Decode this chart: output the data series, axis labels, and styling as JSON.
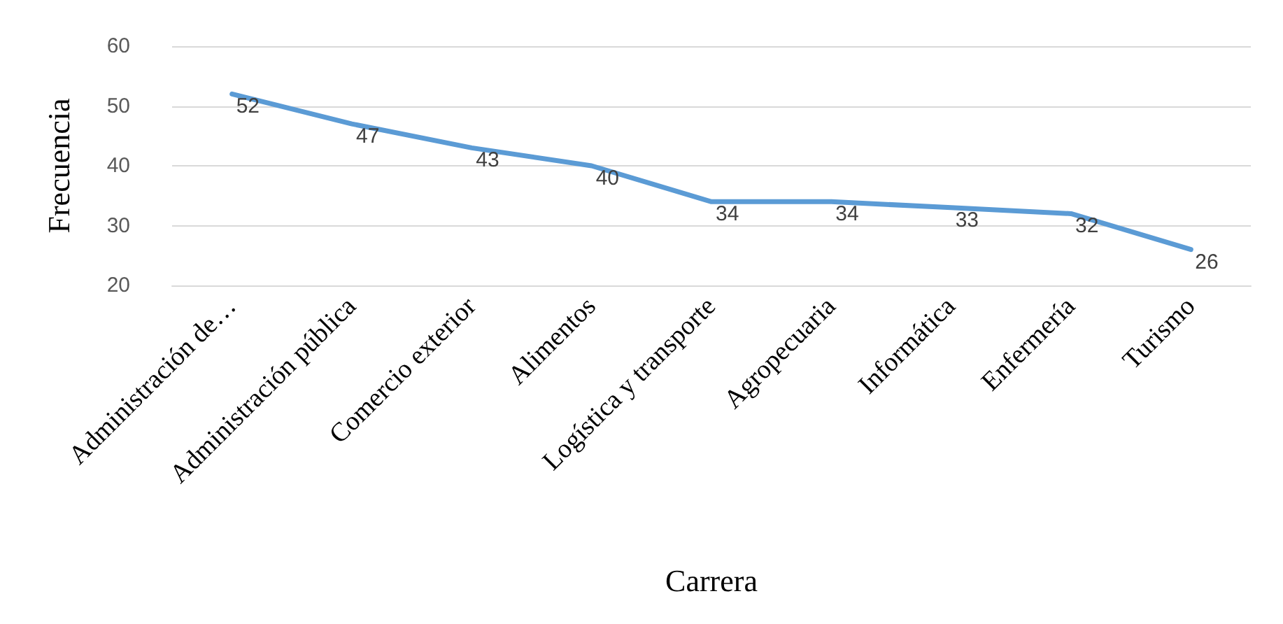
{
  "chart_data": {
    "type": "line",
    "xlabel": "Carrera",
    "ylabel": "Frecuencia",
    "categories": [
      "Administración de…",
      "Administración pública",
      "Comercio exterior",
      "Alimentos",
      "Logística y transporte",
      "Agropecuaria",
      "Informática",
      "Enfermería",
      "Turismo"
    ],
    "series": [
      {
        "color": "#5b9bd5",
        "values": [
          52,
          47,
          43,
          40,
          34,
          34,
          33,
          32,
          26
        ]
      }
    ],
    "ylim": [
      20,
      60
    ],
    "yticks": [
      20,
      30,
      40,
      50,
      60
    ],
    "grid": "y",
    "data_labels": true,
    "marker": "none",
    "line_style": "solid"
  }
}
